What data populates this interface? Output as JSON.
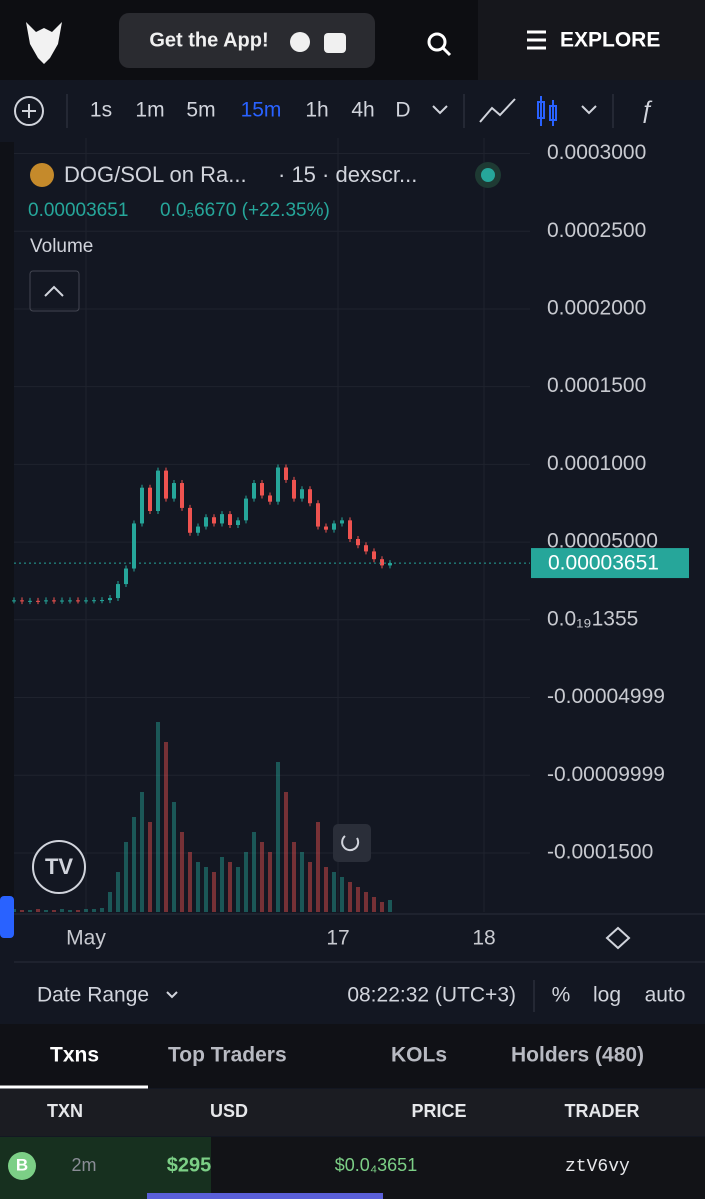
{
  "header": {
    "app_button": "Get the App!",
    "explore": "EXPLORE"
  },
  "toolbar": {
    "intervals": [
      "1s",
      "1m",
      "5m",
      "15m",
      "1h",
      "4h",
      "D"
    ],
    "active_interval": 3
  },
  "chart_data": {
    "type": "candlestick",
    "pair": "DOG/SOL on Ra...",
    "source": "· 15 · dexscr...",
    "change": "0.0₅6670 (+22.35%)",
    "volume_label": "Volume",
    "last_price": 3.651e-05,
    "closes": [
      1.25e-05,
      1.2e-05,
      1.22e-05,
      1.2e-05,
      1.25e-05,
      1.23e-05,
      1.24e-05,
      1.25e-05,
      1.24e-05,
      1.25e-05,
      1.26e-05,
      1.27e-05,
      1.4e-05,
      2.3e-05,
      3.3e-05,
      6.2e-05,
      8.5e-05,
      7e-05,
      9.6e-05,
      7.8e-05,
      8.8e-05,
      7.2e-05,
      5.6e-05,
      6e-05,
      6.6e-05,
      6.2e-05,
      6.8e-05,
      6.1e-05,
      6.4e-05,
      7.8e-05,
      8.8e-05,
      8e-05,
      7.6e-05,
      9.8e-05,
      9e-05,
      7.8e-05,
      8.4e-05,
      7.5e-05,
      6e-05,
      5.8e-05,
      6.2e-05,
      6.4e-05,
      5.2e-05,
      4.8e-05,
      4.4e-05,
      3.9e-05,
      3.5e-05,
      3.651e-05
    ],
    "volume": [
      3,
      2,
      2,
      3,
      2,
      2,
      3,
      2,
      2,
      3,
      3,
      4,
      20,
      40,
      70,
      95,
      120,
      90,
      190,
      170,
      110,
      80,
      60,
      50,
      45,
      40,
      55,
      50,
      45,
      60,
      80,
      70,
      60,
      150,
      120,
      70,
      60,
      50,
      90,
      45,
      40,
      35,
      30,
      25,
      20,
      15,
      10,
      12
    ],
    "ylim": [
      -0.000188,
      0.00031
    ],
    "yticks": [
      {
        "value": 0.0003,
        "label": "0.0003000"
      },
      {
        "value": 0.00025,
        "label": "0.0002500"
      },
      {
        "value": 0.0002,
        "label": "0.0002000"
      },
      {
        "value": 0.00015,
        "label": "0.0001500"
      },
      {
        "value": 0.0001,
        "label": "0.0001000"
      },
      {
        "value": 5e-05,
        "label": "0.00005000"
      },
      {
        "value": 1.355e-20,
        "label": "0.0₁₉1355"
      },
      {
        "value": -4.999e-05,
        "label": "-0.00004999"
      },
      {
        "value": -9.999e-05,
        "label": "-0.00009999"
      },
      {
        "value": -0.00015,
        "label": "-0.0001500"
      }
    ],
    "x_labels": [
      "May",
      "17",
      "18"
    ],
    "up_color": "#26a69a",
    "down_color": "#ef5350",
    "grid": true
  },
  "footer": {
    "date_range": "Date Range",
    "time": "08:22:32 (UTC+3)",
    "options": [
      "%",
      "log",
      "auto"
    ]
  },
  "tabs": [
    "Txns",
    "Top Traders",
    "KOLs",
    "Holders (480)"
  ],
  "table": {
    "headers": [
      "TXN",
      "USD",
      "PRICE",
      "TRADER"
    ],
    "rows": [
      [
        "B",
        "2m",
        "$295",
        "$0.0₄3651",
        "ztV6vy"
      ]
    ]
  }
}
